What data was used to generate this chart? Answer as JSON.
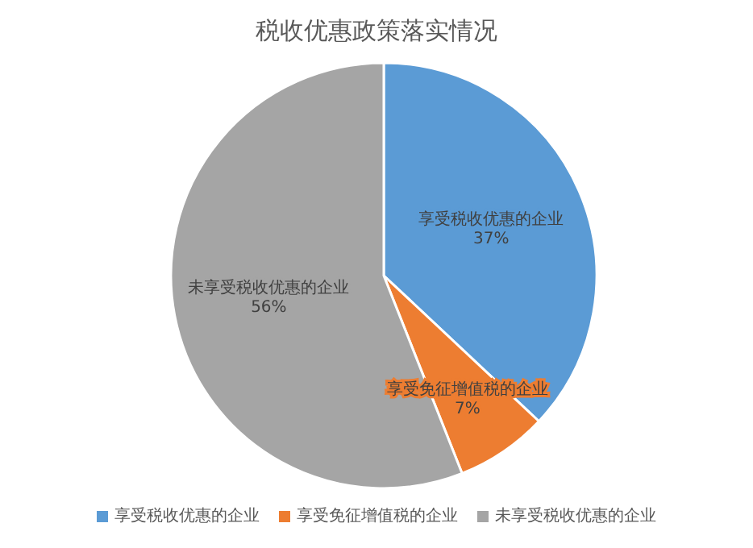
{
  "chart_data": {
    "type": "pie",
    "title": "税收优惠政策落实情况",
    "categories": [
      "享受税收优惠的企业",
      "享受免征增值税的企业",
      "未享受税收优惠的企业"
    ],
    "values": [
      37,
      7,
      56
    ],
    "value_labels": [
      "37%",
      "7%",
      "56%"
    ],
    "colors": [
      "#5b9bd5",
      "#ed7d31",
      "#a5a5a5"
    ],
    "legend": "bottom"
  }
}
